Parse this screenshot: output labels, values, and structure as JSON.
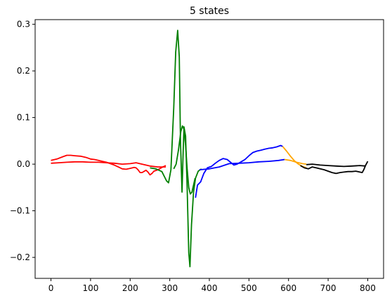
{
  "chart_data": {
    "type": "line",
    "title": "5 states",
    "xlabel": "",
    "ylabel": "",
    "xlim": [
      -40,
      840
    ],
    "ylim": [
      -0.245,
      0.31
    ],
    "xticks": [
      0,
      100,
      200,
      300,
      400,
      500,
      600,
      700,
      800
    ],
    "yticks": [
      0.3,
      0.2,
      0.1,
      0.0,
      -0.1,
      -0.2
    ],
    "ytick_labels": [
      "0.3",
      "0.2",
      "0.1",
      "0.0",
      "−0.1",
      "−0.2"
    ],
    "grid": false,
    "legend": "none",
    "series": [
      {
        "color": "#ff0000",
        "x": [
          0,
          15,
          30,
          40,
          50,
          60,
          75,
          90,
          100,
          110,
          120,
          130,
          140,
          150,
          160,
          170,
          180,
          190,
          200,
          210,
          215,
          220,
          225,
          230,
          240,
          245,
          250,
          255,
          260,
          270,
          280,
          290
        ],
        "y": [
          0.008,
          0.011,
          0.016,
          0.019,
          0.019,
          0.018,
          0.017,
          0.014,
          0.011,
          0.01,
          0.008,
          0.006,
          0.004,
          0.001,
          -0.002,
          -0.006,
          -0.01,
          -0.011,
          -0.009,
          -0.007,
          -0.008,
          -0.012,
          -0.018,
          -0.018,
          -0.013,
          -0.017,
          -0.023,
          -0.02,
          -0.015,
          -0.012,
          -0.007,
          -0.003
        ]
      },
      {
        "color": "#ff0000",
        "x": [
          0,
          20,
          40,
          60,
          80,
          100,
          120,
          140,
          160,
          180,
          200,
          215,
          230,
          250,
          270,
          290
        ],
        "y": [
          0.002,
          0.003,
          0.004,
          0.005,
          0.005,
          0.004,
          0.004,
          0.003,
          0.002,
          0.0,
          0.001,
          0.003,
          0.0,
          -0.004,
          -0.006,
          -0.006
        ]
      },
      {
        "color": "#008000",
        "x": [
          250,
          265,
          280,
          292,
          297,
          303,
          310,
          315,
          320,
          324,
          327,
          331,
          334,
          336,
          340,
          344,
          348,
          351,
          355,
          360,
          365,
          372,
          380
        ],
        "y": [
          -0.008,
          -0.01,
          -0.016,
          -0.036,
          -0.04,
          -0.012,
          0.12,
          0.24,
          0.287,
          0.23,
          0.05,
          -0.06,
          0.03,
          0.08,
          0.06,
          -0.05,
          -0.19,
          -0.22,
          -0.13,
          -0.06,
          -0.03,
          -0.015,
          -0.01
        ]
      },
      {
        "color": "#008000",
        "x": [
          310,
          316,
          322,
          328,
          332,
          336,
          340,
          344,
          348,
          352,
          356,
          360,
          364
        ],
        "y": [
          -0.01,
          0.0,
          0.03,
          0.07,
          0.082,
          0.075,
          0.04,
          -0.01,
          -0.05,
          -0.064,
          -0.06,
          -0.045,
          -0.03
        ]
      },
      {
        "color": "#0000ff",
        "x": [
          365,
          370,
          378,
          386,
          395,
          405,
          415,
          425,
          435,
          445,
          455,
          462,
          470,
          480,
          490,
          500,
          510,
          520,
          530,
          540,
          550,
          560,
          570,
          580,
          585
        ],
        "y": [
          -0.072,
          -0.045,
          -0.038,
          -0.02,
          -0.008,
          -0.005,
          0.002,
          0.008,
          0.012,
          0.01,
          0.003,
          -0.002,
          0.0,
          0.005,
          0.01,
          0.018,
          0.025,
          0.028,
          0.03,
          0.032,
          0.034,
          0.035,
          0.037,
          0.04,
          0.038
        ]
      },
      {
        "color": "#0000ff",
        "x": [
          375,
          400,
          425,
          450,
          475,
          500,
          525,
          550,
          575,
          590
        ],
        "y": [
          -0.012,
          -0.01,
          -0.006,
          0.001,
          0.002,
          0.003,
          0.005,
          0.006,
          0.008,
          0.01
        ]
      },
      {
        "color": "#ffa500",
        "x": [
          585,
          595,
          605,
          615,
          625,
          635,
          645
        ],
        "y": [
          0.038,
          0.028,
          0.017,
          0.007,
          0.0,
          -0.005,
          -0.008
        ]
      },
      {
        "color": "#ffa500",
        "x": [
          590,
          605,
          620,
          635,
          645
        ],
        "y": [
          0.01,
          0.008,
          0.004,
          0.001,
          0.0
        ]
      },
      {
        "color": "#000000",
        "x": [
          630,
          640,
          650,
          660,
          670,
          680,
          690,
          700,
          710,
          720,
          730,
          740,
          750,
          760,
          770,
          780,
          786,
          790,
          795,
          800
        ],
        "y": [
          -0.003,
          -0.008,
          -0.01,
          -0.006,
          -0.008,
          -0.01,
          -0.012,
          -0.015,
          -0.018,
          -0.02,
          -0.018,
          -0.017,
          -0.016,
          -0.016,
          -0.015,
          -0.017,
          -0.018,
          -0.012,
          -0.002,
          0.006
        ]
      },
      {
        "color": "#000000",
        "x": [
          645,
          660,
          680,
          700,
          720,
          740,
          760,
          780,
          795
        ],
        "y": [
          -0.001,
          0.0,
          -0.002,
          -0.003,
          -0.004,
          -0.005,
          -0.004,
          -0.003,
          -0.004
        ]
      }
    ]
  }
}
